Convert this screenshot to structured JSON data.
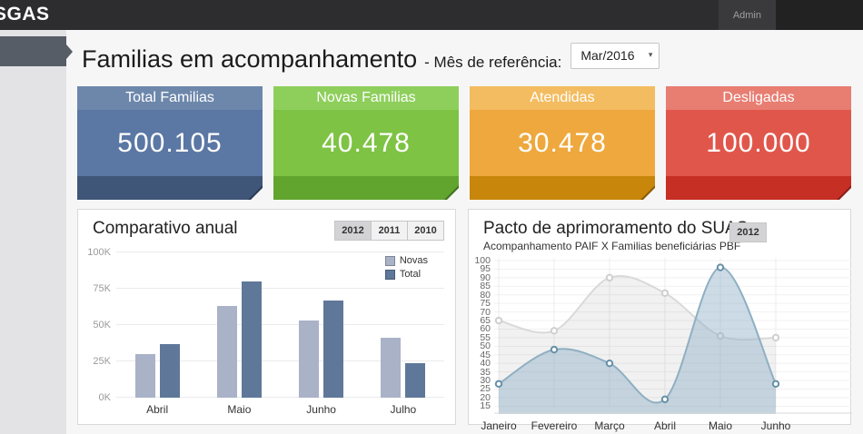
{
  "topbar": {
    "brand": "SGAS",
    "user_label": "Admin",
    "bg_color": "#2d2d2f"
  },
  "page": {
    "title": "Familias em acompanhamento",
    "reference_label": "- Mês de referência:",
    "selected_month": "Mar/2016"
  },
  "summary_cards": [
    {
      "label": "Total Familias",
      "value": "500.105",
      "colors": {
        "header": "#6d87ab",
        "body": "#5b77a4",
        "footer": "#3f5679"
      }
    },
    {
      "label": "Novas Familias",
      "value": "40.478",
      "colors": {
        "header": "#8ecf5c",
        "body": "#7ec344",
        "footer": "#61a52e"
      }
    },
    {
      "label": "Atendidas",
      "value": "30.478",
      "colors": {
        "header": "#f3bc60",
        "body": "#eea83d",
        "footer": "#c8860a"
      }
    },
    {
      "label": "Desligadas",
      "value": "100.000",
      "colors": {
        "header": "#e87d72",
        "body": "#e1564b",
        "footer": "#c62f24"
      }
    }
  ],
  "chart_data": [
    {
      "type": "bar",
      "title": "Comparativo anual",
      "year_buttons": [
        "2012",
        "2011",
        "2010"
      ],
      "active_year": "2012",
      "categories": [
        "Abril",
        "Maio",
        "Junho",
        "Julho"
      ],
      "series": [
        {
          "name": "Novas",
          "color": "#a9b2c7",
          "values": [
            30000,
            63000,
            53000,
            41000
          ]
        },
        {
          "name": "Total",
          "color": "#5f7899",
          "values": [
            37000,
            80000,
            67000,
            24000
          ]
        }
      ],
      "ylim": [
        0,
        100000
      ],
      "yticks": [
        {
          "value": 0,
          "label": "0K"
        },
        {
          "value": 25000,
          "label": "25K"
        },
        {
          "value": 50000,
          "label": "50K"
        },
        {
          "value": 75000,
          "label": "75K"
        },
        {
          "value": 100000,
          "label": "100K"
        }
      ],
      "legend_position": "top-right",
      "grid": true
    },
    {
      "type": "area",
      "title": "Pacto de aprimoramento do SUAS",
      "subtitle": "Acompanhamento PAIF X Familias beneficiárias PBF",
      "year_buttons": [
        "2012"
      ],
      "active_year": "2012",
      "categories": [
        "Janeiro",
        "Fevereiro",
        "Março",
        "Abril",
        "Maio",
        "Junho"
      ],
      "series": [
        {
          "values": [
            65,
            59,
            90,
            81,
            56,
            55
          ],
          "line_color": "#d9d9da",
          "fill_color": "rgba(0,0,0,0.055)",
          "dot_color": "#cfcfcf"
        },
        {
          "values": [
            28,
            48,
            40,
            19,
            96,
            28
          ],
          "line_color": "#8fafc2",
          "fill_color": "rgba(141,176,198,0.45)",
          "dot_color": "#6590a8"
        }
      ],
      "ylim": [
        12,
        100
      ],
      "ytick_start": 15,
      "ytick_end": 100,
      "ytick_step": 5,
      "grid": true
    }
  ]
}
